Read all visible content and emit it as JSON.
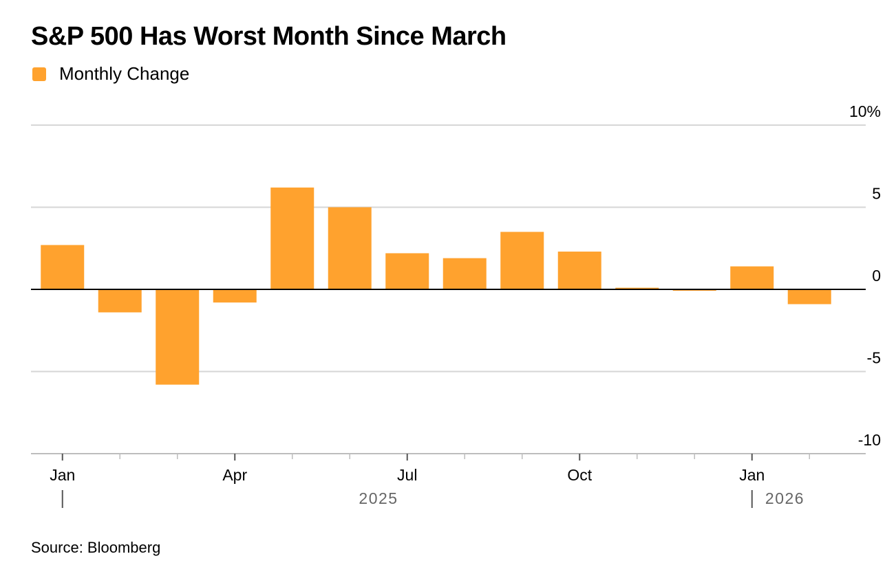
{
  "title": "S&P 500 Has Worst Month Since March",
  "legend": {
    "label": "Monthly Change",
    "color": "#FFA22E"
  },
  "source": "Source: Bloomberg",
  "colors": {
    "bar": "#FFA22E",
    "grid": "#d6d6d6",
    "zero": "#000000",
    "axis": "#bdbdbd",
    "year_text": "#666666"
  },
  "chart_data": {
    "type": "bar",
    "title": "S&P 500 Has Worst Month Since March",
    "series": [
      {
        "name": "Monthly Change",
        "values": [
          2.7,
          -1.4,
          -5.8,
          -0.8,
          6.2,
          5.0,
          2.2,
          1.9,
          3.5,
          2.3,
          0.1,
          -0.05,
          1.4,
          -0.9
        ]
      }
    ],
    "categories": [
      "Jan 2025",
      "Feb 2025",
      "Mar 2025",
      "Apr 2025",
      "May 2025",
      "Jun 2025",
      "Jul 2025",
      "Aug 2025",
      "Sep 2025",
      "Oct 2025",
      "Nov 2025",
      "Dec 2025",
      "Jan 2026",
      "Feb 2026"
    ],
    "ylim": [
      -10,
      10
    ],
    "y_ticks": [
      10,
      5,
      0,
      -5,
      -10
    ],
    "y_tick_labels": [
      "10%",
      "5",
      "0",
      "-5",
      "-10"
    ],
    "x_tick_labels": [
      {
        "index": 0,
        "label": "Jan"
      },
      {
        "index": 3,
        "label": "Apr"
      },
      {
        "index": 6,
        "label": "Jul"
      },
      {
        "index": 9,
        "label": "Oct"
      },
      {
        "index": 12,
        "label": "Jan"
      }
    ],
    "year_labels": [
      {
        "label": "2025",
        "from": 0,
        "to": 11
      },
      {
        "label": "2026",
        "from": 12,
        "to": 13
      }
    ],
    "xlabel": "",
    "ylabel": "",
    "grid": true,
    "legend_position": "top-left"
  }
}
